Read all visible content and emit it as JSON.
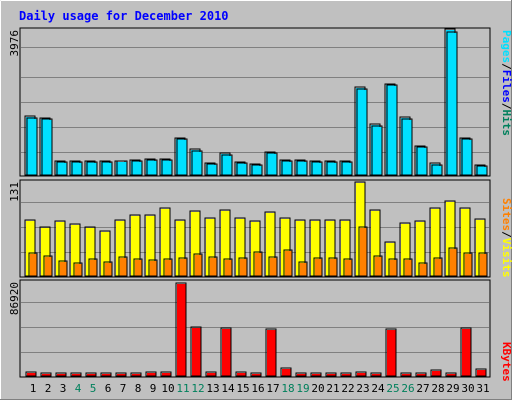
{
  "chart_data": [
    {
      "type": "bar",
      "title": "Daily usage for December 2010",
      "ytick_label": "3976",
      "categories": [
        "1",
        "2",
        "3",
        "4",
        "5",
        "6",
        "7",
        "8",
        "9",
        "10",
        "11",
        "12",
        "13",
        "14",
        "15",
        "16",
        "17",
        "18",
        "19",
        "20",
        "21",
        "22",
        "23",
        "24",
        "25",
        "26",
        "27",
        "28",
        "29",
        "30",
        "31"
      ],
      "weekend_days": [
        "4",
        "5",
        "11",
        "12",
        "18",
        "19",
        "25",
        "26"
      ],
      "series": [
        {
          "name": "Hits",
          "color": "#00805C",
          "values": [
            1580,
            1540,
            370,
            350,
            360,
            350,
            370,
            380,
            400,
            400,
            1000,
            680,
            290,
            580,
            340,
            270,
            610,
            380,
            380,
            360,
            360,
            350,
            2380,
            1380,
            2480,
            1560,
            780,
            290,
            3976,
            1000,
            260
          ]
        },
        {
          "name": "Files",
          "color": "#0000FF",
          "values": [
            1540,
            1500,
            330,
            330,
            330,
            330,
            350,
            350,
            380,
            390,
            960,
            620,
            270,
            530,
            310,
            240,
            580,
            350,
            360,
            340,
            330,
            320,
            2340,
            1320,
            2430,
            1500,
            740,
            240,
            3900,
            950,
            220
          ]
        }
      ],
      "legend_labels": {
        "pages": "Pages",
        "sep1": "/",
        "files": "Files",
        "sep2": "/",
        "hits": "Hits"
      },
      "ylim": [
        0,
        3976
      ]
    },
    {
      "type": "bar",
      "ytick_label": "131",
      "categories": [
        "1",
        "2",
        "3",
        "4",
        "5",
        "6",
        "7",
        "8",
        "9",
        "10",
        "11",
        "12",
        "13",
        "14",
        "15",
        "16",
        "17",
        "18",
        "19",
        "20",
        "21",
        "22",
        "23",
        "24",
        "25",
        "26",
        "27",
        "28",
        "29",
        "30",
        "31"
      ],
      "series": [
        {
          "name": "Visits",
          "color": "#FFFF00",
          "values": [
            77,
            68,
            76,
            72,
            68,
            62,
            77,
            85,
            84,
            95,
            78,
            90,
            80,
            92,
            80,
            76,
            89,
            80,
            78,
            77,
            77,
            78,
            131,
            92,
            46,
            73,
            76,
            94,
            104,
            95,
            79
          ]
        },
        {
          "name": "Sites",
          "color": "#FF8000",
          "values": [
            31,
            27,
            20,
            17,
            22,
            19,
            25,
            22,
            21,
            23,
            24,
            29,
            25,
            22,
            24,
            33,
            25,
            35,
            19,
            24,
            24,
            23,
            67,
            27,
            22,
            23,
            17,
            24,
            38,
            31,
            31
          ]
        }
      ],
      "legend_labels": {
        "sites": "Sites",
        "sep": "/",
        "visits": "Visits"
      },
      "ylim": [
        0,
        131
      ]
    },
    {
      "type": "bar",
      "ytick_label": "86920",
      "categories": [
        "1",
        "2",
        "3",
        "4",
        "5",
        "6",
        "7",
        "8",
        "9",
        "10",
        "11",
        "12",
        "13",
        "14",
        "15",
        "16",
        "17",
        "18",
        "19",
        "20",
        "21",
        "22",
        "23",
        "24",
        "25",
        "26",
        "27",
        "28",
        "29",
        "30",
        "31"
      ],
      "series": [
        {
          "name": "KBytes",
          "color": "#FF0000",
          "values": [
            2600,
            2200,
            2200,
            1700,
            1800,
            1600,
            2200,
            2300,
            2900,
            2700,
            86920,
            45000,
            3000,
            44000,
            3000,
            1900,
            43000,
            6800,
            1700,
            2300,
            2300,
            2300,
            2400,
            2200,
            43000,
            2000,
            2200,
            4800,
            2200,
            44000,
            5400
          ]
        }
      ],
      "legend_labels": {
        "kbytes": "KBytes"
      },
      "ylim": [
        0,
        86920
      ]
    }
  ]
}
